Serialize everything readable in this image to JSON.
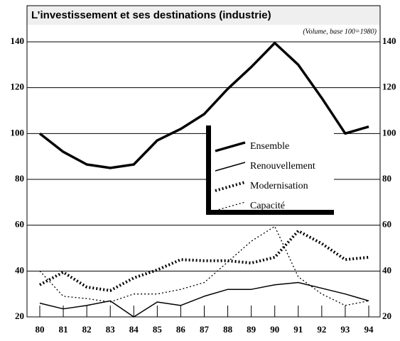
{
  "chart_data": {
    "type": "line",
    "title": "L’investissement et ses destinations (industrie)",
    "subtitle": "(Volume, base 100=1980)",
    "categories": [
      "80",
      "81",
      "82",
      "83",
      "84",
      "85",
      "86",
      "87",
      "88",
      "89",
      "90",
      "91",
      "92",
      "93",
      "94"
    ],
    "series": [
      {
        "name": "Ensemble",
        "color": "#000000",
        "values": [
          100,
          92,
          86.5,
          85,
          86.5,
          97,
          102,
          108.5,
          119.5,
          129,
          139.5,
          130,
          115.5,
          100,
          103
        ]
      },
      {
        "name": "Renouvellement",
        "color": "#000000",
        "values": [
          26,
          23.5,
          25,
          27,
          20,
          26.5,
          25,
          29,
          32,
          32,
          34,
          35,
          32.5,
          30,
          27
        ]
      },
      {
        "name": "Modernisation",
        "color": "#000000",
        "values": [
          34,
          39.5,
          33,
          31.5,
          37,
          40.5,
          45,
          44.5,
          44.5,
          43.5,
          46,
          57.5,
          52,
          45,
          46
        ]
      },
      {
        "name": "Capacité",
        "color": "#000000",
        "values": [
          40,
          29,
          28,
          26.5,
          30,
          30,
          32,
          35,
          44,
          53,
          59.5,
          37.5,
          30,
          25,
          27
        ]
      }
    ],
    "ylim": [
      20,
      140
    ],
    "yticks": [
      20,
      40,
      60,
      80,
      100,
      120,
      140
    ],
    "grid": true
  }
}
